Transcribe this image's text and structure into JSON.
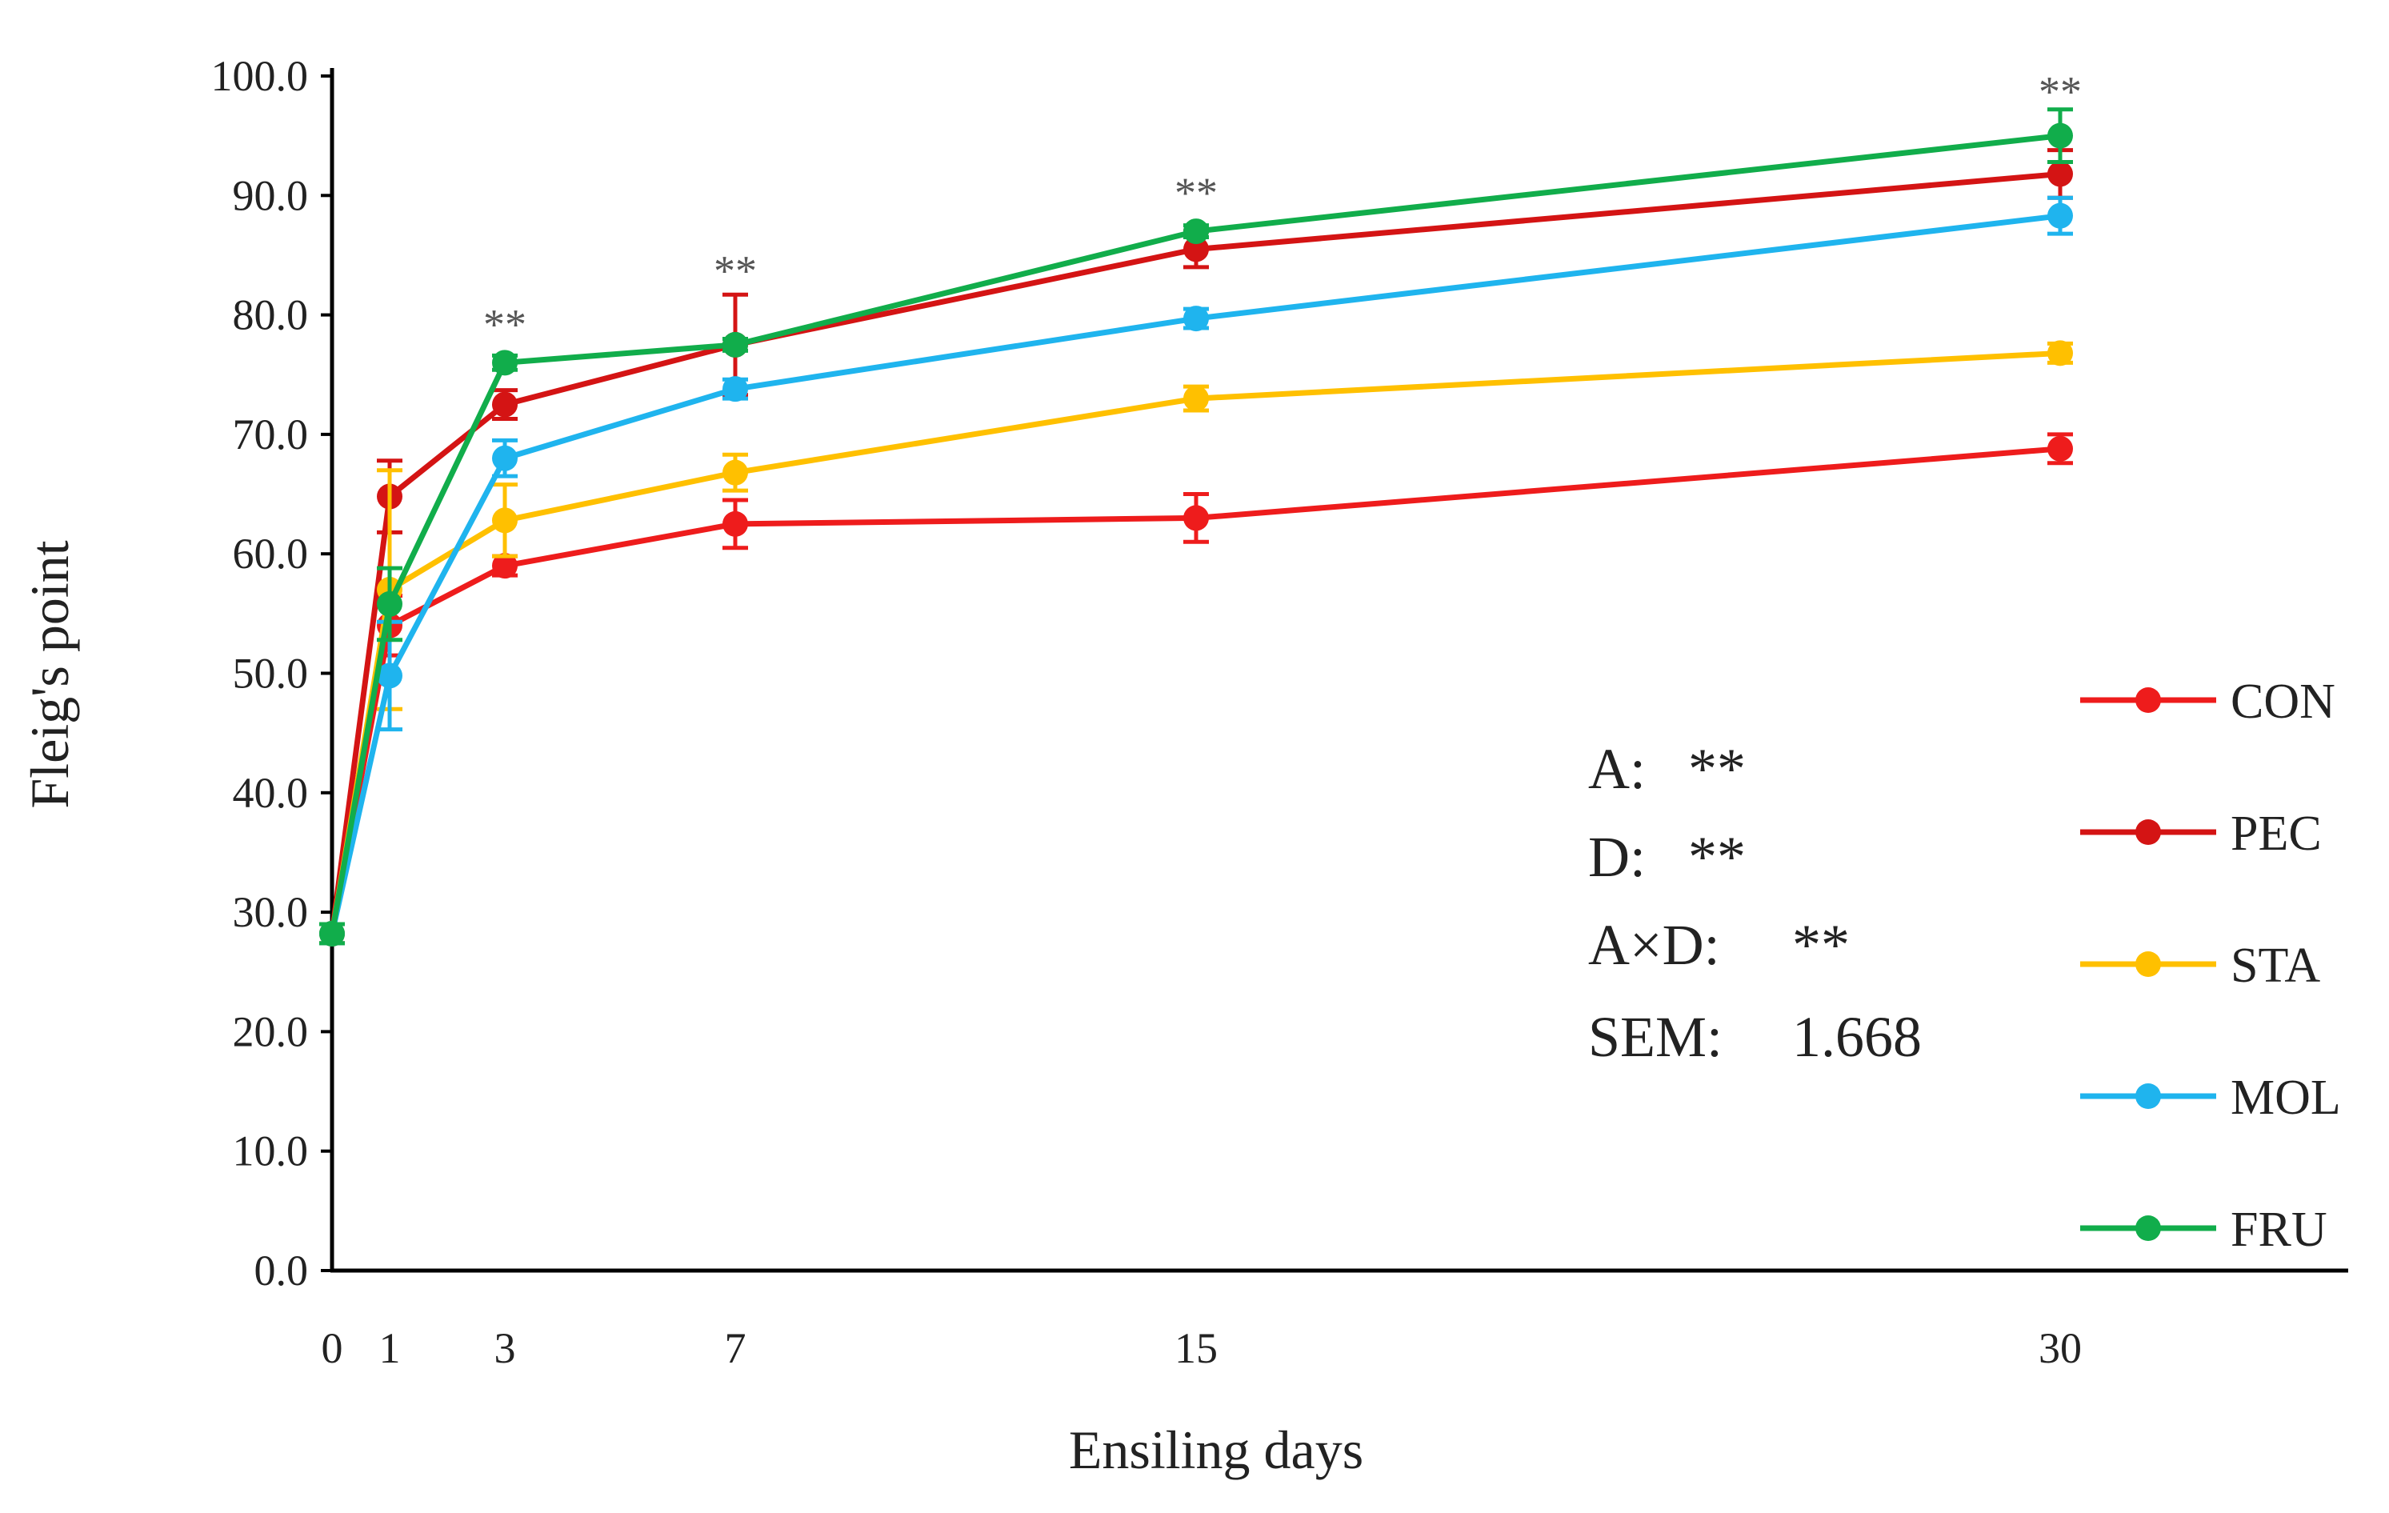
{
  "chart_data": {
    "type": "line",
    "xlabel": "Ensiling days",
    "ylabel": "Fleig's point",
    "ylim": [
      0,
      100
    ],
    "yticks": [
      0,
      10,
      20,
      30,
      40,
      50,
      60,
      70,
      80,
      90,
      100
    ],
    "ytick_labels": [
      "0.0",
      "10.0",
      "20.0",
      "30.0",
      "40.0",
      "50.0",
      "60.0",
      "70.0",
      "80.0",
      "90.0",
      "100.0"
    ],
    "x": [
      0,
      1,
      3,
      7,
      15,
      30
    ],
    "xtick_labels": [
      "0",
      "1",
      "3",
      "7",
      "15",
      "30"
    ],
    "xlim": [
      0,
      35
    ],
    "series": [
      {
        "name": "CON",
        "color": "#ee1c1c",
        "values": [
          28.2,
          54.0,
          59.0,
          62.5,
          63.0,
          68.8
        ],
        "errors": [
          0.8,
          2.5,
          0.8,
          2.0,
          2.0,
          1.2
        ]
      },
      {
        "name": "PEC",
        "color": "#d41414",
        "values": [
          28.2,
          64.8,
          72.5,
          77.5,
          85.5,
          91.8
        ],
        "errors": [
          0.8,
          3.0,
          1.2,
          4.2,
          1.5,
          2.0
        ]
      },
      {
        "name": "STA",
        "color": "#ffc000",
        "values": [
          28.2,
          57.0,
          62.8,
          66.8,
          73.0,
          76.8
        ],
        "errors": [
          0.8,
          10.0,
          3.0,
          1.5,
          1.0,
          0.8
        ]
      },
      {
        "name": "MOL",
        "color": "#1fb4ee",
        "values": [
          28.2,
          49.8,
          68.0,
          73.8,
          79.7,
          88.3
        ],
        "errors": [
          0.8,
          4.5,
          1.5,
          0.8,
          0.8,
          1.5
        ]
      },
      {
        "name": "FRU",
        "color": "#11ad4b",
        "values": [
          28.2,
          55.8,
          76.0,
          77.5,
          87.0,
          95.0
        ],
        "errors": [
          0.8,
          3.0,
          0.6,
          0.5,
          0.5,
          2.2
        ]
      }
    ],
    "significance": [
      {
        "x": 3,
        "y": 78.0,
        "label": "**"
      },
      {
        "x": 7,
        "y": 82.5,
        "label": "**"
      },
      {
        "x": 15,
        "y": 89.0,
        "label": "**"
      },
      {
        "x": 30,
        "y": 97.5,
        "label": "**"
      }
    ],
    "stats_labels": [
      "A:",
      "D:",
      "A×D:",
      "SEM:"
    ],
    "stats_values": [
      "**",
      "**",
      "**",
      "1.668"
    ],
    "legend_position": "right"
  }
}
